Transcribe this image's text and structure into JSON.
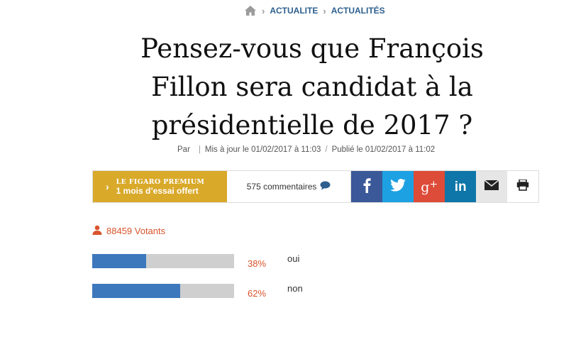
{
  "breadcrumb": {
    "home_icon": "home-icon",
    "items": [
      "ACTUALITE",
      "ACTUALITÉS"
    ]
  },
  "article": {
    "title": "Pensez-vous que François Fillon sera candidat à la présidentielle de 2017 ?",
    "byline_prefix": "Par",
    "updated": "Mis à jour le 01/02/2017 à 11:03",
    "published": "Publié le 01/02/2017 à 11:02"
  },
  "sharebar": {
    "premium_brand_1": "LE FIGARO",
    "premium_brand_2": "PREMIUM",
    "premium_offer": "1 mois d’essai offert",
    "comments_label": "575 commentaires",
    "icons": [
      "facebook-icon",
      "twitter-icon",
      "google-plus-icon",
      "linkedin-icon",
      "mail-icon",
      "print-icon"
    ]
  },
  "poll": {
    "voters_label": "88459 Votants",
    "options": [
      {
        "percent_label": "38%",
        "answer": "oui",
        "share": 0.38
      },
      {
        "percent_label": "62%",
        "answer": "non",
        "share": 0.62
      }
    ]
  },
  "colors": {
    "link": "#2d5f8f",
    "premium": "#d9a92a",
    "accent": "#d9542b",
    "bar_fill": "#3d78bd",
    "bar_track": "#cfcfcf",
    "facebook": "#3b5998",
    "twitter": "#1da1e2",
    "google_plus": "#dd4b39",
    "linkedin": "#0e76a8"
  }
}
